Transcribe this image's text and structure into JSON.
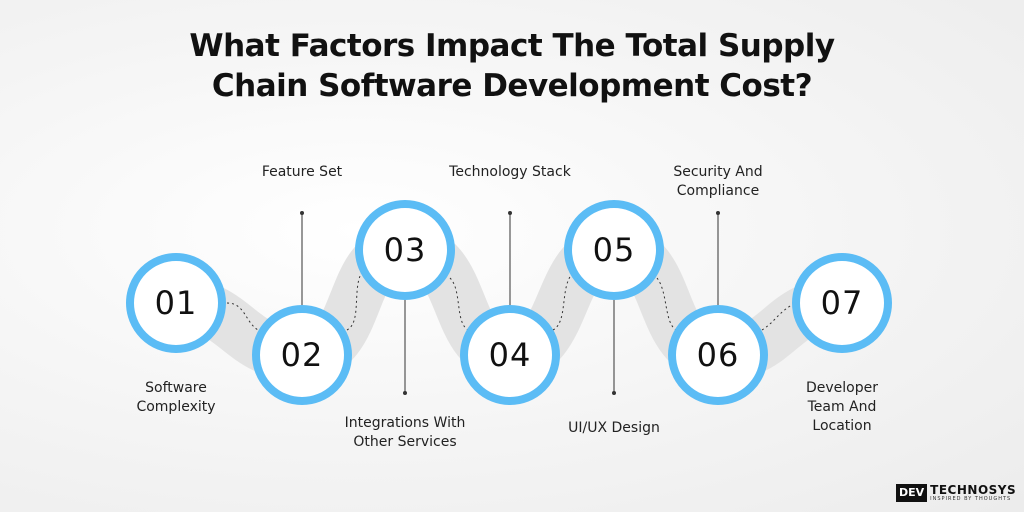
{
  "title": {
    "line1": "What Factors Impact The Total Supply",
    "line2": "Chain Software Development Cost?"
  },
  "steps": [
    {
      "number": "01",
      "label_lines": [
        "Software",
        "Complexity"
      ]
    },
    {
      "number": "02",
      "label_lines": [
        "Feature Set"
      ]
    },
    {
      "number": "03",
      "label_lines": [
        "Integrations With",
        "Other Services"
      ]
    },
    {
      "number": "04",
      "label_lines": [
        "Technology Stack"
      ]
    },
    {
      "number": "05",
      "label_lines": [
        "UI/UX Design"
      ]
    },
    {
      "number": "06",
      "label_lines": [
        "Security And",
        "Compliance"
      ]
    },
    {
      "number": "07",
      "label_lines": [
        "Developer",
        "Team And",
        "Location"
      ]
    }
  ],
  "logo": {
    "mark": "DEV",
    "name": "TECHNOSYS",
    "tagline": "INSPIRED BY THOUGHTS"
  },
  "colors": {
    "accent": "#5bbcf5",
    "text": "#111111",
    "wave": "#e2e2e2"
  }
}
